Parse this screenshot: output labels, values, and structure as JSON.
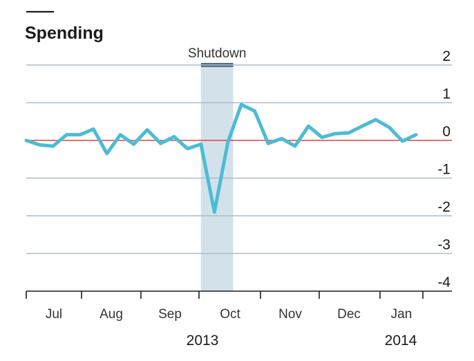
{
  "chart_data": {
    "type": "line",
    "title": "Spending",
    "ylim": [
      -4,
      2
    ],
    "yticks": [
      "2",
      "1",
      "0",
      "-1",
      "-2",
      "-3",
      "-4"
    ],
    "months": [
      "Jul",
      "Aug",
      "Sep",
      "Oct",
      "Nov",
      "Dec",
      "Jan"
    ],
    "years": [
      "2013",
      "2014"
    ],
    "annotation": {
      "label": "Shutdown",
      "start_week": 13,
      "end_week": 15.4
    },
    "grid": true,
    "colors": {
      "series": "#4bbcd6",
      "zero_line": "#e0403a",
      "shade": "#d3e2ea",
      "grid": "#a8bccb"
    },
    "series": [
      {
        "x": [
          0,
          1,
          2,
          3,
          4,
          5,
          6,
          7,
          8,
          9,
          10,
          11,
          12,
          13,
          14,
          15,
          16,
          17,
          18,
          19,
          20,
          21,
          22,
          23,
          24,
          25,
          26,
          27,
          28,
          29
        ],
        "values": [
          0,
          -0.12,
          -0.15,
          0.15,
          0.15,
          0.3,
          -0.35,
          0.15,
          -0.1,
          0.28,
          -0.08,
          0.1,
          -0.22,
          -0.1,
          -1.9,
          -0.05,
          0.95,
          0.78,
          -0.08,
          0.05,
          -0.15,
          0.38,
          0.08,
          0.18,
          0.2,
          0.38,
          0.55,
          0.35,
          -0.02,
          0.15
        ]
      }
    ]
  }
}
